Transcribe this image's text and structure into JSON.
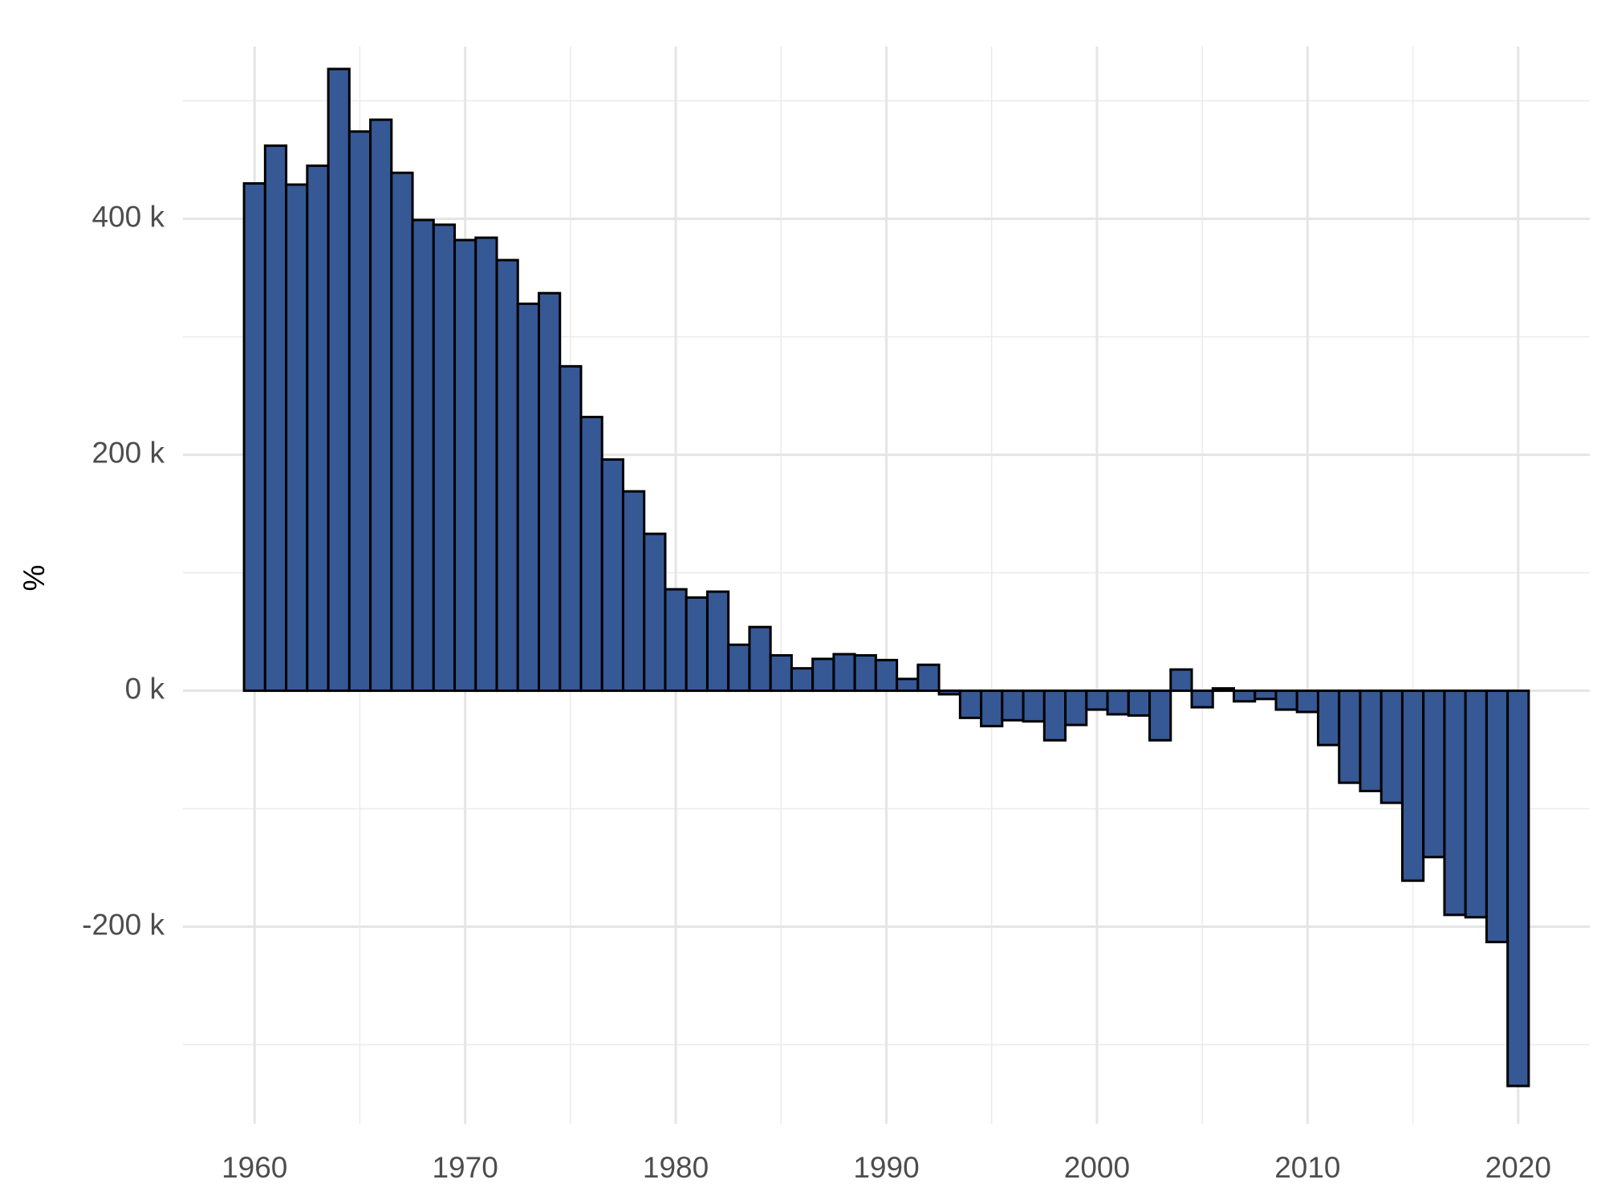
{
  "chart_data": {
    "type": "bar",
    "y_label": "%",
    "x": [
      1960,
      1961,
      1962,
      1963,
      1964,
      1965,
      1966,
      1967,
      1968,
      1969,
      1970,
      1971,
      1972,
      1973,
      1974,
      1975,
      1976,
      1977,
      1978,
      1979,
      1980,
      1981,
      1982,
      1983,
      1984,
      1985,
      1986,
      1987,
      1988,
      1989,
      1990,
      1991,
      1992,
      1993,
      1994,
      1995,
      1996,
      1997,
      1998,
      1999,
      2000,
      2001,
      2002,
      2003,
      2004,
      2005,
      2006,
      2007,
      2008,
      2009,
      2010,
      2011,
      2012,
      2013,
      2014,
      2015,
      2016,
      2017,
      2018,
      2019,
      2020
    ],
    "values": [
      430000,
      462000,
      429000,
      445000,
      527000,
      474000,
      484000,
      439000,
      399000,
      395000,
      382000,
      384000,
      365000,
      328000,
      337000,
      275000,
      232000,
      196000,
      169000,
      133000,
      86000,
      79000,
      84000,
      39000,
      54000,
      30000,
      19000,
      27000,
      31000,
      30000,
      26000,
      10000,
      22000,
      -3000,
      -23000,
      -30000,
      -25000,
      -26000,
      -42000,
      -29000,
      -16000,
      -20000,
      -21000,
      -42000,
      18000,
      -14000,
      2000,
      -9000,
      -7000,
      -16000,
      -18000,
      -46000,
      -78000,
      -85000,
      -95000,
      -161000,
      -141000,
      -190000,
      -192000,
      -213000,
      -335000
    ],
    "color": "#365895",
    "edge_color": "#000000",
    "xlim": [
      1956.6,
      2023.4
    ],
    "xticks": [
      1960,
      1970,
      1980,
      1990,
      2000,
      2010,
      2020
    ],
    "x_minor_ticks": [
      1965,
      1975,
      1985,
      1995,
      2005,
      2015
    ],
    "ylim": [
      -367000,
      546000
    ],
    "yticks": [
      {
        "value": -200000,
        "label": "-200 k"
      },
      {
        "value": 0,
        "label": "0 k"
      },
      {
        "value": 200000,
        "label": "200 k"
      },
      {
        "value": 400000,
        "label": "400 k"
      }
    ],
    "y_minor_ticks": [
      -300000,
      -100000,
      100000,
      300000,
      500000
    ],
    "grid": true
  }
}
